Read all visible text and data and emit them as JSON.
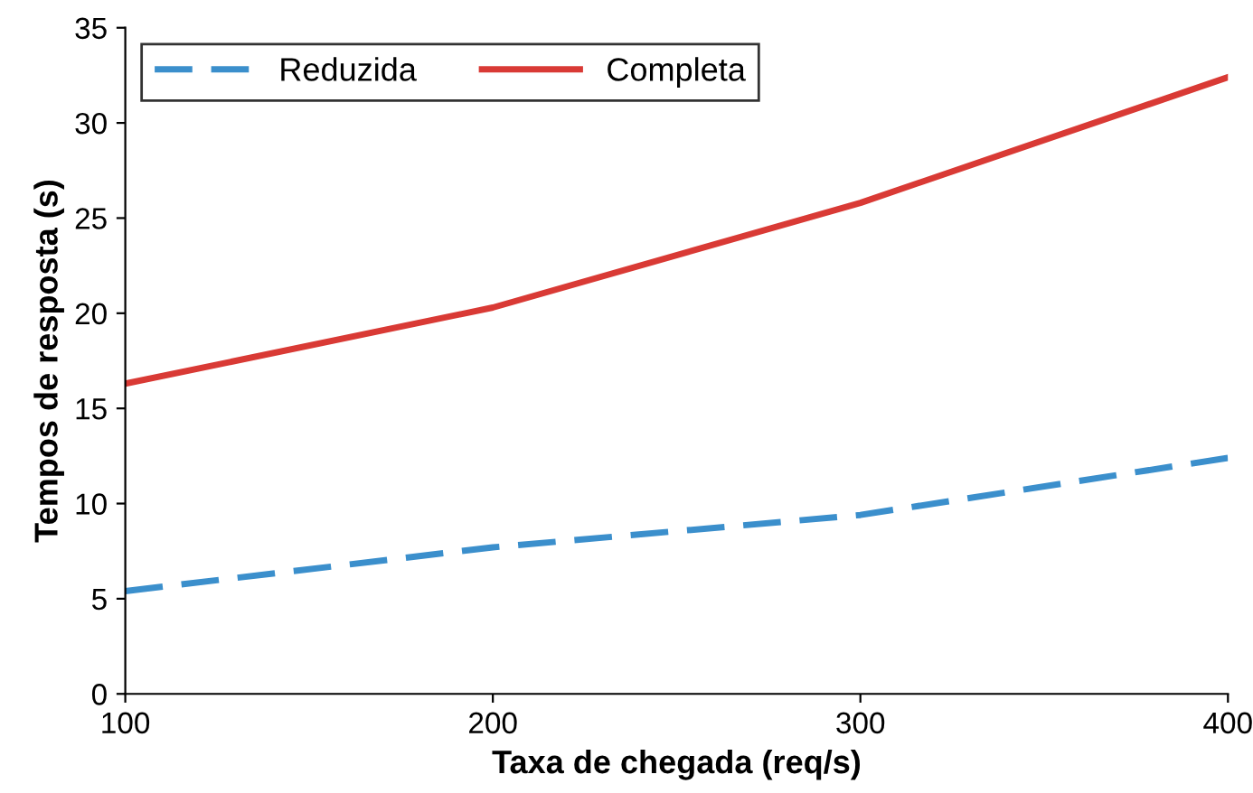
{
  "chart_data": {
    "type": "line",
    "xlabel": "Taxa de chegada (req/s)",
    "ylabel": "Tempos de resposta (s)",
    "x": [
      100,
      200,
      300,
      400
    ],
    "series": [
      {
        "name": "Reduzida",
        "color": "#3b8fcc",
        "values": [
          5.4,
          7.7,
          9.4,
          12.4
        ],
        "line_style": "dashed"
      },
      {
        "name": "Completa",
        "color": "#d93a35",
        "values": [
          16.3,
          20.3,
          25.8,
          32.4
        ],
        "line_style": "solid"
      }
    ],
    "xlim": [
      100,
      400
    ],
    "xticks": [
      100,
      200,
      300,
      400
    ],
    "ylim": [
      0,
      35
    ],
    "yticks": [
      0,
      5,
      10,
      15,
      20,
      25,
      30,
      35
    ],
    "grid": false,
    "legend": "top left",
    "marker": "none"
  }
}
